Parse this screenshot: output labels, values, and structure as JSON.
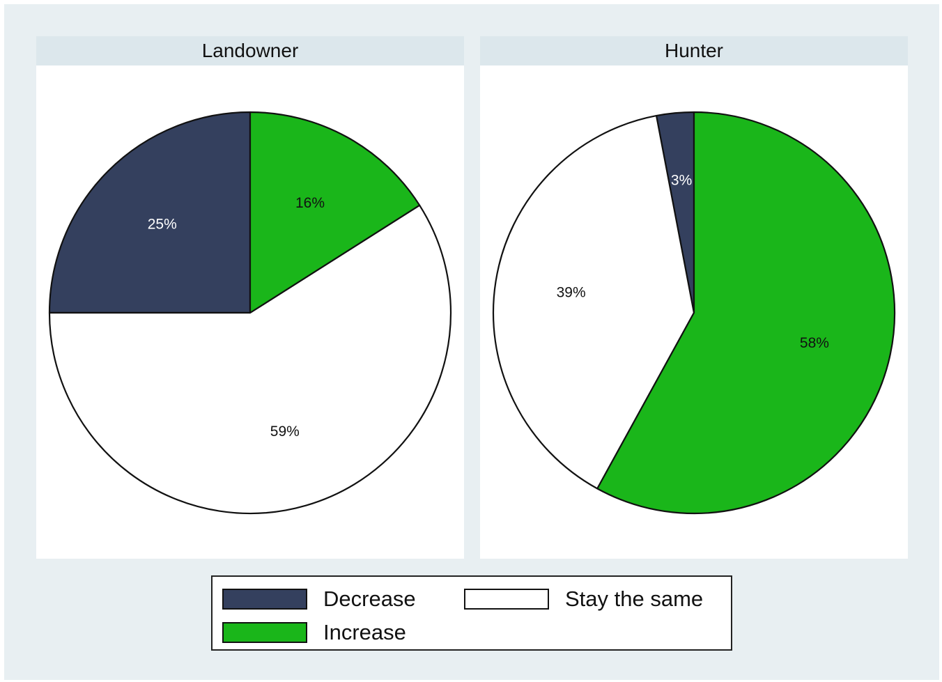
{
  "colors": {
    "decrease": "#34405e",
    "stay_the_same": "#ffffff",
    "increase": "#1ab61a"
  },
  "legend": {
    "decrease": "Decrease",
    "stay_the_same": "Stay the same",
    "increase": "Increase"
  },
  "chart_data": [
    {
      "type": "pie",
      "title": "Landowner",
      "slices": [
        {
          "key": "decrease",
          "label": "Decrease",
          "value": 25,
          "text": "25%"
        },
        {
          "key": "stay_the_same",
          "label": "Stay the same",
          "value": 59,
          "text": "59%"
        },
        {
          "key": "increase",
          "label": "Increase",
          "value": 16,
          "text": "16%"
        }
      ]
    },
    {
      "type": "pie",
      "title": "Hunter",
      "slices": [
        {
          "key": "decrease",
          "label": "Decrease",
          "value": 3,
          "text": "3%"
        },
        {
          "key": "stay_the_same",
          "label": "Stay the same",
          "value": 39,
          "text": "39%"
        },
        {
          "key": "increase",
          "label": "Increase",
          "value": 58,
          "text": "58%"
        }
      ]
    }
  ]
}
